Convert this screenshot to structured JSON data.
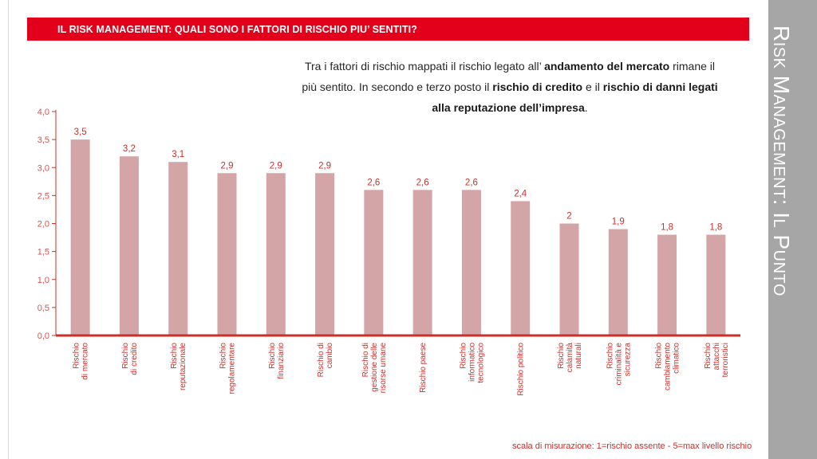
{
  "header": {
    "title": "IL RISK MANAGEMENT: QUALI SONO I FATTORI DI RISCHIO PIU’ SENTITI?"
  },
  "side_panel": {
    "title": "Risk Management: Il Punto"
  },
  "intro": {
    "t1": "Tra i fattori di rischio mappati il rischio legato all’ ",
    "b1": "andamento del mercato",
    "t2": " rimane il più sentito. In secondo e terzo posto il ",
    "b2": "rischio di credito",
    "t3": " e il ",
    "b3": "rischio di danni legati alla reputazione dell’impresa",
    "t4": "."
  },
  "scale_note": "scala di misurazione: 1=rischio assente - 5=max livello rischio",
  "colors": {
    "bar": "#d4a5a7",
    "axis": "#c9302c",
    "accent": "#e3001b",
    "side": "#a6a6a6"
  },
  "chart_data": {
    "type": "bar",
    "categories": [
      [
        "Rischio",
        "di mercato"
      ],
      [
        "Rischio",
        "di credito"
      ],
      [
        "Rischio",
        "reputazionale"
      ],
      [
        "Rischio",
        "regolamentare"
      ],
      [
        "Rischio",
        "finanziario"
      ],
      [
        "Rischio di",
        "cambio"
      ],
      [
        "Rischio di",
        "gestione delle",
        "risorse umane"
      ],
      [
        "Rischio paese"
      ],
      [
        "Rischio",
        "informatico",
        "tecnologico"
      ],
      [
        "Rischio politico"
      ],
      [
        "Rischio",
        "calamità",
        "naturali"
      ],
      [
        "Rischio",
        "criminalità e",
        "sicurezza"
      ],
      [
        "Rischio",
        "cambiamento",
        "climatico"
      ],
      [
        "Rischio",
        "attacchi",
        "terroristici"
      ]
    ],
    "values": [
      3.5,
      3.2,
      3.1,
      2.9,
      2.9,
      2.9,
      2.6,
      2.6,
      2.6,
      2.4,
      2.0,
      1.9,
      1.8,
      1.8
    ],
    "value_labels": [
      "3,5",
      "3,2",
      "3,1",
      "2,9",
      "2,9",
      "2,9",
      "2,6",
      "2,6",
      "2,6",
      "2,4",
      "2",
      "1,9",
      "1,8",
      "1,8"
    ],
    "y_ticks": [
      0,
      0.5,
      1.0,
      1.5,
      2.0,
      2.5,
      3.0,
      3.5,
      4.0
    ],
    "y_tick_labels": [
      "0,0",
      "0,5",
      "1,0",
      "1,5",
      "2,0",
      "2,5",
      "3,0",
      "3,5",
      "4,0"
    ],
    "ylim": [
      0,
      4
    ],
    "grid": false
  }
}
